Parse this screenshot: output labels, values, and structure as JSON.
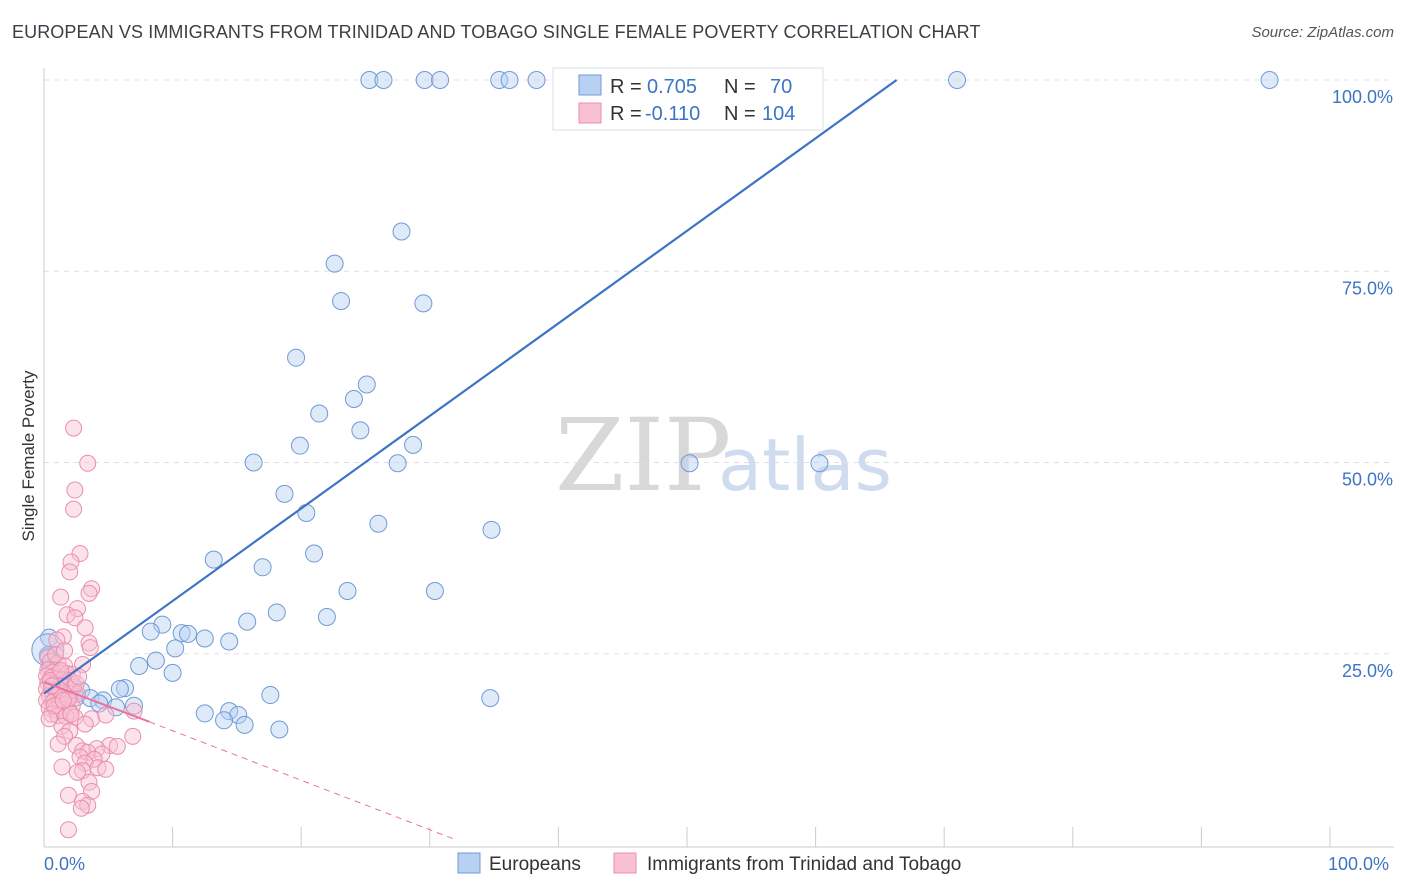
{
  "header": {
    "title": "EUROPEAN VS IMMIGRANTS FROM TRINIDAD AND TOBAGO SINGLE FEMALE POVERTY CORRELATION CHART",
    "source": "Source: ZipAtlas.com"
  },
  "watermark": {
    "zip": "ZIP",
    "atlas": "atlas"
  },
  "colors": {
    "blue": "#3d74c5",
    "blue_fill": "#b8d1f2",
    "pink": "#e8739b",
    "pink_fill": "#f8c1d3",
    "grid": "#dde1e6"
  },
  "legend_box": {
    "rows": [
      {
        "r_label": "R =",
        "r_value": "0.705",
        "n_label": "N =",
        "n_value": "70"
      },
      {
        "r_label": "R =",
        "r_value": "-0.110",
        "n_label": "N =",
        "n_value": "104"
      }
    ]
  },
  "bottom_legend": {
    "series1": "Europeans",
    "series2": "Immigrants from Trinidad and Tobago"
  },
  "chart_data": {
    "type": "scatter",
    "title": "EUROPEAN VS IMMIGRANTS FROM TRINIDAD AND TOBAGO SINGLE FEMALE POVERTY CORRELATION CHART",
    "xlabel": "",
    "ylabel": "Single Female Poverty",
    "xlim": [
      0,
      100
    ],
    "ylim": [
      0,
      100
    ],
    "x_tick_labels": [
      "0.0%",
      "100.0%"
    ],
    "y_tick_labels": [
      "25.0%",
      "50.0%",
      "75.0%",
      "100.0%"
    ],
    "y_ticks": [
      25,
      50,
      75,
      100
    ],
    "grid": true,
    "series": [
      {
        "name": "Europeans",
        "color": "#3d74c5",
        "R": 0.705,
        "N": 70,
        "trend": {
          "x": [
            0,
            66.3
          ],
          "y": [
            19.8,
            100
          ]
        },
        "points": [
          [
            25.3,
            100
          ],
          [
            26.4,
            100
          ],
          [
            29.6,
            100
          ],
          [
            30.8,
            100
          ],
          [
            35.4,
            100
          ],
          [
            36.2,
            100
          ],
          [
            38.3,
            100
          ],
          [
            71,
            100
          ],
          [
            95.3,
            100
          ],
          [
            27.8,
            80.2
          ],
          [
            22.6,
            76
          ],
          [
            23.1,
            71.1
          ],
          [
            29.5,
            70.8
          ],
          [
            19.6,
            63.7
          ],
          [
            25.1,
            60.2
          ],
          [
            24.1,
            58.3
          ],
          [
            21.4,
            56.4
          ],
          [
            24.6,
            54.2
          ],
          [
            28.7,
            52.3
          ],
          [
            19.9,
            52.2
          ],
          [
            16.3,
            50
          ],
          [
            27.5,
            49.9
          ],
          [
            50.2,
            49.9
          ],
          [
            60.3,
            49.9
          ],
          [
            18.7,
            45.9
          ],
          [
            20.4,
            43.4
          ],
          [
            26.0,
            42
          ],
          [
            34.8,
            41.2
          ],
          [
            21,
            38.1
          ],
          [
            13.2,
            37.3
          ],
          [
            17.0,
            36.3
          ],
          [
            23.6,
            33.2
          ],
          [
            30.4,
            33.2
          ],
          [
            18.1,
            30.4
          ],
          [
            22.0,
            29.8
          ],
          [
            15.8,
            29.2
          ],
          [
            9.2,
            28.8
          ],
          [
            8.3,
            27.9
          ],
          [
            10.7,
            27.7
          ],
          [
            11.2,
            27.6
          ],
          [
            12.5,
            27.0
          ],
          [
            14.4,
            26.6
          ],
          [
            10.2,
            25.7
          ],
          [
            0.4,
            27.1
          ],
          [
            0.3,
            24.6
          ],
          [
            0.3,
            24.8
          ],
          [
            8.7,
            24.1
          ],
          [
            7.4,
            23.4
          ],
          [
            10,
            22.5
          ],
          [
            0.5,
            23.1
          ],
          [
            1.0,
            22.1
          ],
          [
            2.2,
            21.0
          ],
          [
            6.3,
            20.5
          ],
          [
            5.9,
            20.4
          ],
          [
            2.9,
            20.2
          ],
          [
            17.6,
            19.6
          ],
          [
            1.9,
            19.7
          ],
          [
            2.5,
            19.3
          ],
          [
            3.6,
            19.2
          ],
          [
            4.6,
            18.9
          ],
          [
            7.0,
            18.2
          ],
          [
            34.7,
            19.2
          ],
          [
            14.4,
            17.5
          ],
          [
            15.1,
            17.0
          ],
          [
            12.5,
            17.2
          ],
          [
            14,
            16.3
          ],
          [
            15.6,
            15.7
          ],
          [
            18.3,
            15.1
          ],
          [
            4.3,
            18.5
          ],
          [
            5.6,
            18.0
          ]
        ]
      },
      {
        "name": "Immigrants from Trinidad and Tobago",
        "color": "#e8739b",
        "R": -0.11,
        "N": 104,
        "trend": {
          "x": [
            0,
            8.2
          ],
          "y": [
            21.3,
            16.1
          ]
        },
        "trend_dashed": {
          "x": [
            8.2,
            32
          ],
          "y": [
            16.1,
            0.7
          ]
        },
        "points": [
          [
            2.3,
            54.5
          ],
          [
            3.4,
            49.9
          ],
          [
            2.4,
            46.4
          ],
          [
            2.3,
            43.9
          ],
          [
            2.8,
            38.1
          ],
          [
            2.1,
            37.0
          ],
          [
            2.0,
            35.7
          ],
          [
            3.7,
            33.5
          ],
          [
            3.5,
            32.9
          ],
          [
            1.3,
            32.4
          ],
          [
            2.6,
            30.9
          ],
          [
            1.8,
            30.1
          ],
          [
            2.4,
            29.7
          ],
          [
            3.2,
            28.4
          ],
          [
            1.5,
            27.2
          ],
          [
            1.0,
            26.8
          ],
          [
            3.5,
            26.4
          ],
          [
            3.6,
            25.8
          ],
          [
            0.3,
            24.5
          ],
          [
            0.5,
            24.0
          ],
          [
            1.1,
            23.8
          ],
          [
            1.6,
            23.4
          ],
          [
            0.3,
            22.9
          ],
          [
            0.7,
            22.6
          ],
          [
            1.2,
            22.5
          ],
          [
            1.8,
            22.4
          ],
          [
            2.2,
            22.3
          ],
          [
            0.2,
            22.1
          ],
          [
            0.6,
            21.9
          ],
          [
            1.0,
            21.7
          ],
          [
            1.4,
            21.6
          ],
          [
            2.0,
            21.5
          ],
          [
            0.3,
            21.2
          ],
          [
            0.8,
            21.0
          ],
          [
            1.3,
            20.9
          ],
          [
            1.7,
            20.7
          ],
          [
            2.3,
            20.6
          ],
          [
            0.2,
            20.4
          ],
          [
            0.6,
            20.2
          ],
          [
            1.0,
            20.0
          ],
          [
            1.5,
            19.9
          ],
          [
            2.0,
            19.8
          ],
          [
            2.6,
            19.7
          ],
          [
            0.4,
            19.5
          ],
          [
            0.9,
            19.3
          ],
          [
            1.4,
            19.2
          ],
          [
            0.2,
            18.9
          ],
          [
            0.7,
            18.7
          ],
          [
            1.2,
            18.5
          ],
          [
            1.7,
            18.4
          ],
          [
            2.2,
            18.2
          ],
          [
            0.4,
            17.9
          ],
          [
            0.9,
            17.7
          ],
          [
            1.5,
            17.6
          ],
          [
            2.0,
            17.4
          ],
          [
            0.6,
            17.1
          ],
          [
            1.1,
            16.9
          ],
          [
            1.7,
            16.8
          ],
          [
            2.4,
            16.7
          ],
          [
            3.7,
            16.5
          ],
          [
            4.8,
            17.0
          ],
          [
            7.0,
            17.5
          ],
          [
            3.2,
            15.8
          ],
          [
            1.4,
            15.5
          ],
          [
            2.0,
            14.9
          ],
          [
            1.6,
            14.2
          ],
          [
            6.9,
            14.2
          ],
          [
            1.1,
            13.2
          ],
          [
            2.5,
            13.0
          ],
          [
            5.1,
            13.0
          ],
          [
            5.7,
            12.9
          ],
          [
            4.1,
            12.6
          ],
          [
            3.0,
            12.3
          ],
          [
            3.4,
            12.1
          ],
          [
            4.5,
            11.9
          ],
          [
            2.8,
            11.5
          ],
          [
            3.9,
            11.2
          ],
          [
            3.2,
            10.7
          ],
          [
            1.4,
            10.2
          ],
          [
            4.2,
            10.1
          ],
          [
            3.0,
            9.7
          ],
          [
            2.6,
            9.5
          ],
          [
            4.8,
            9.9
          ],
          [
            3.5,
            8.2
          ],
          [
            3.7,
            7.0
          ],
          [
            1.9,
            6.5
          ],
          [
            3.0,
            5.7
          ],
          [
            3.4,
            5.2
          ],
          [
            2.9,
            4.8
          ],
          [
            1.9,
            2.0
          ],
          [
            0.5,
            21.5
          ],
          [
            1.2,
            20.3
          ],
          [
            1.9,
            19.1
          ],
          [
            0.8,
            18.2
          ],
          [
            1.3,
            22.8
          ],
          [
            2.5,
            21.1
          ],
          [
            0.4,
            16.5
          ],
          [
            2.1,
            17.1
          ],
          [
            0.9,
            24.9
          ],
          [
            1.6,
            25.4
          ],
          [
            3.0,
            23.6
          ],
          [
            2.7,
            22.0
          ],
          [
            0.6,
            20.8
          ],
          [
            1.5,
            18.9
          ]
        ]
      }
    ]
  }
}
